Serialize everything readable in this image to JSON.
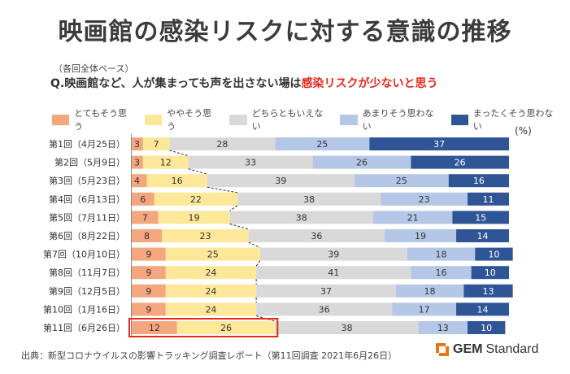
{
  "title": "映画館の感染リスクに対する意識の推移",
  "base_note": "（各回全体ベース）",
  "question": {
    "prefix": "Q.映画館など、人が集まっても声を出さない場は",
    "highlight": "感染リスクが少ないと思う"
  },
  "unit": "(%)",
  "source": "出典：新型コロナウイルスの影響トラッキング調査レポート（第11回調査 2021年6月26日）",
  "logo": {
    "gem": "GEM",
    "standard": "Standard"
  },
  "colors": {
    "s1": "#f4a67e",
    "s2": "#fde89a",
    "s3": "#d9d9d9",
    "s4": "#b4c7e7",
    "s5": "#2f5597",
    "highlight_box": "#e8261b",
    "dash": "#333333"
  },
  "chart_data": {
    "type": "bar",
    "orientation": "horizontal-stacked-100",
    "categories": [
      "第1回（4月25日）",
      "第2回（5月9日）",
      "第3回（5月23日）",
      "第4回（6月13日）",
      "第5回（7月11日）",
      "第6回（8月22日）",
      "第7回（10月10日）",
      "第8回（11月7日）",
      "第9回（12月5日）",
      "第10回（1月16日）",
      "第11回（6月26日）"
    ],
    "series": [
      {
        "name": "とてもそう思う",
        "values": [
          3,
          3,
          4,
          6,
          7,
          8,
          9,
          9,
          9,
          9,
          12
        ]
      },
      {
        "name": "ややそう思う",
        "values": [
          7,
          12,
          16,
          22,
          19,
          23,
          25,
          24,
          24,
          24,
          26
        ]
      },
      {
        "name": "どちらともいえない",
        "values": [
          28,
          33,
          39,
          38,
          38,
          36,
          39,
          41,
          37,
          36,
          38
        ]
      },
      {
        "name": "あまりそう思わない",
        "values": [
          25,
          26,
          25,
          23,
          21,
          19,
          18,
          16,
          18,
          17,
          13
        ]
      },
      {
        "name": "まったくそう思わない",
        "values": [
          37,
          26,
          16,
          11,
          15,
          14,
          10,
          10,
          13,
          14,
          10
        ]
      }
    ],
    "xlim": [
      0,
      100
    ],
    "legend_position": "top",
    "highlighted_category": "第11回（6月26日）"
  }
}
